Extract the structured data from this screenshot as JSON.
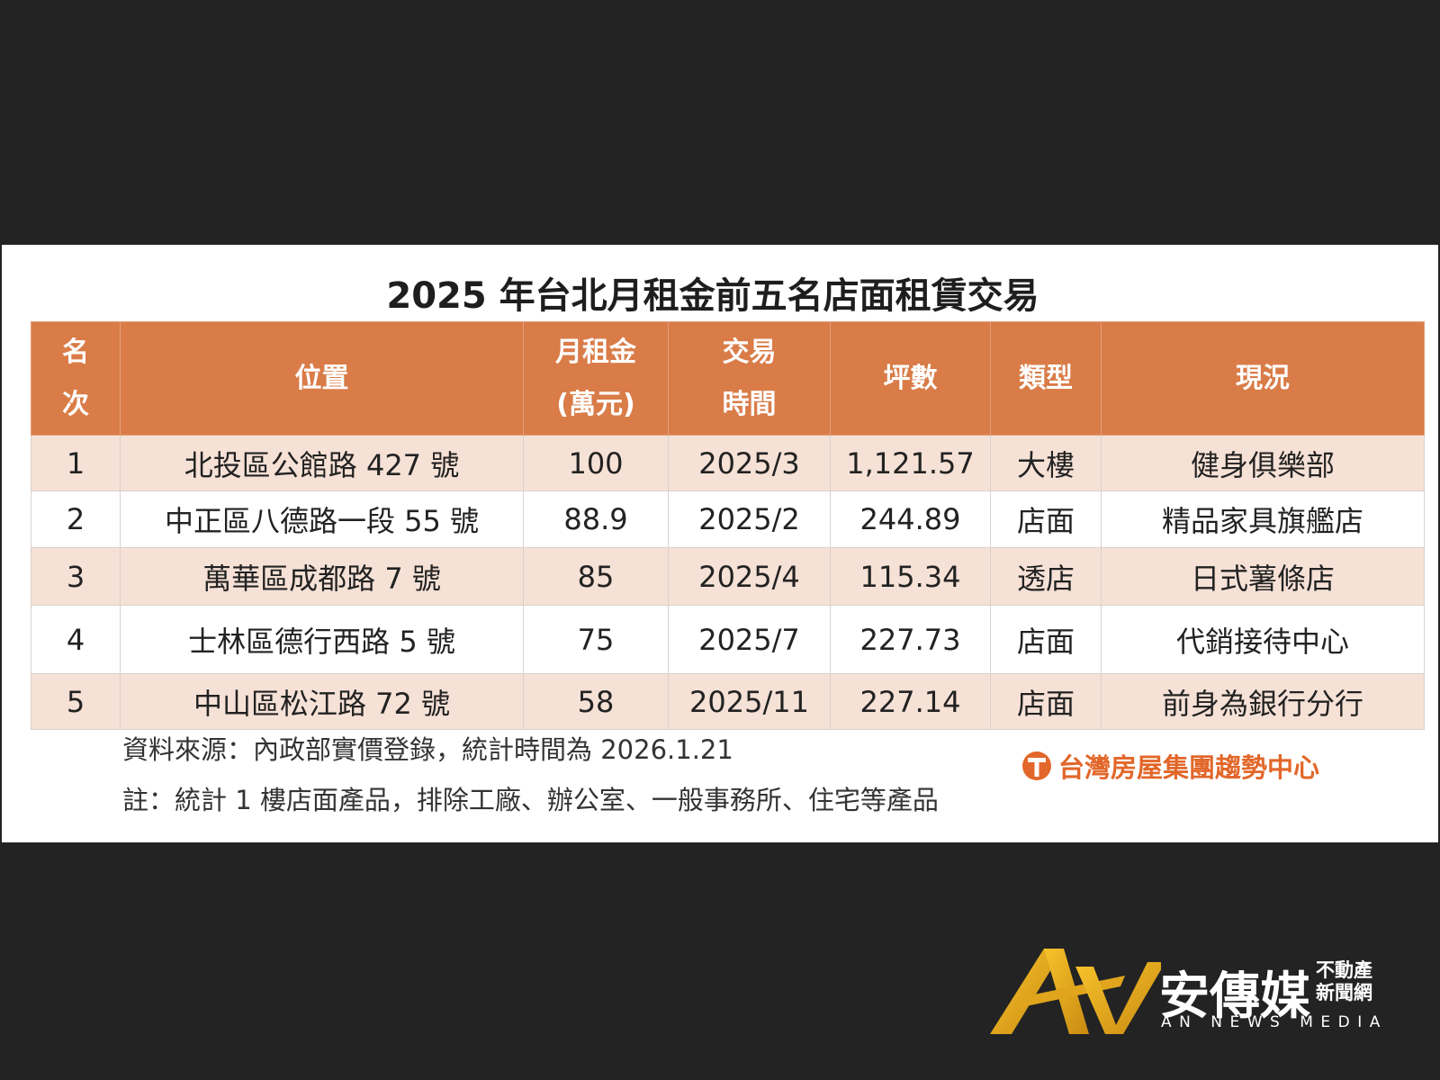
{
  "title": "2025 年台北月租金前五名店面租賃交易",
  "table": {
    "header": [
      [
        "名",
        "次"
      ],
      [
        "位置"
      ],
      [
        "月租金",
        "(萬元)"
      ],
      [
        "交易",
        "時間"
      ],
      [
        "坪數"
      ],
      [
        "類型"
      ],
      [
        "現況"
      ]
    ],
    "rows": [
      [
        "1",
        "北投區公館路 427 號",
        "100",
        "2025/3",
        "1,121.57",
        "大樓",
        "健身俱樂部"
      ],
      [
        "2",
        "中正區八德路一段 55 號",
        "88.9",
        "2025/2",
        "244.89",
        "店面",
        "精品家具旗艦店"
      ],
      [
        "3",
        "萬華區成都路 7 號",
        "85",
        "2025/4",
        "115.34",
        "透店",
        "日式薯條店"
      ],
      [
        "4",
        "士林區德行西路 5 號",
        "75",
        "2025/7",
        "227.73",
        "店面",
        "代銷接待中心"
      ],
      [
        "5",
        "中山區松江路 72 號",
        "58",
        "2025/11",
        "227.14",
        "店面",
        "前身為銀行分行"
      ]
    ]
  },
  "footer": {
    "source": "資料來源：內政部實價登錄，統計時間為 2026.1.21",
    "note": "註：統計 1 樓店面產品，排除工廠、辦公室、一般事務所、住宅等產品",
    "brand": "台灣房屋集團趨勢中心"
  },
  "watermark": {
    "name": "安傳媒",
    "sub": [
      "不動產",
      "新聞網"
    ],
    "english": "AN NEWS MEDIA"
  }
}
